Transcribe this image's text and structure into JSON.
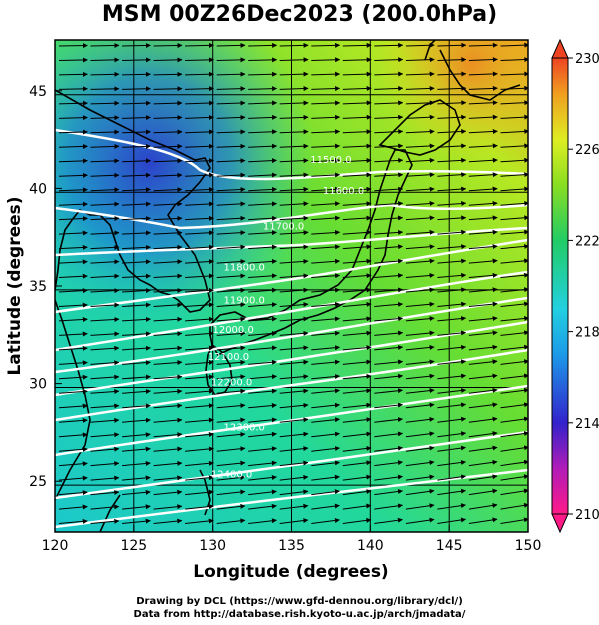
{
  "title": "MSM 00Z26Dec2023 (200.0hPa)",
  "xlabel": "Longitude (degrees)",
  "ylabel": "Latitude  (degrees)",
  "credits": [
    "Drawing by DCL (https://www.gfd-dennou.org/library/dcl/)",
    "Data from http://database.rish.kyoto-u.ac.jp/arch/jmadata/"
  ],
  "map": {
    "lon_range": [
      120,
      150
    ],
    "lat_range": [
      22.4,
      47.6
    ],
    "lon_ticks": [
      120,
      125,
      130,
      135,
      140,
      145,
      150
    ],
    "lat_ticks": [
      25,
      30,
      35,
      40,
      45
    ],
    "gridlines": "every 5 degrees",
    "background": "temperature shading (K)",
    "vectors": "wind arrows, generally westerly",
    "contour_labels": [
      {
        "text": "11500.0",
        "lon": 137.5,
        "lat": 41.3
      },
      {
        "text": "11600.0",
        "lon": 138.3,
        "lat": 39.7
      },
      {
        "text": "11700.0",
        "lon": 134.5,
        "lat": 37.9
      },
      {
        "text": "11800.0",
        "lon": 132.0,
        "lat": 35.8
      },
      {
        "text": "11900.0",
        "lon": 132.0,
        "lat": 34.1
      },
      {
        "text": "12000.0",
        "lon": 131.3,
        "lat": 32.6
      },
      {
        "text": "12100.0",
        "lon": 131.0,
        "lat": 31.2
      },
      {
        "text": "12200.0",
        "lon": 131.2,
        "lat": 29.9
      },
      {
        "text": "12300.0",
        "lon": 132.0,
        "lat": 27.6
      },
      {
        "text": "12400.0",
        "lon": 131.2,
        "lat": 25.2
      }
    ]
  },
  "colorbar": {
    "min": 210,
    "max": 230,
    "labels": [
      "230",
      "226",
      "222",
      "218",
      "214",
      "210"
    ],
    "colors": [
      "#ff1a66",
      "#cc22cc",
      "#3322cc",
      "#1188ee",
      "#22ccee",
      "#22cc66",
      "#66dd22",
      "#ccee22",
      "#eebb22",
      "#ee5522"
    ]
  }
}
